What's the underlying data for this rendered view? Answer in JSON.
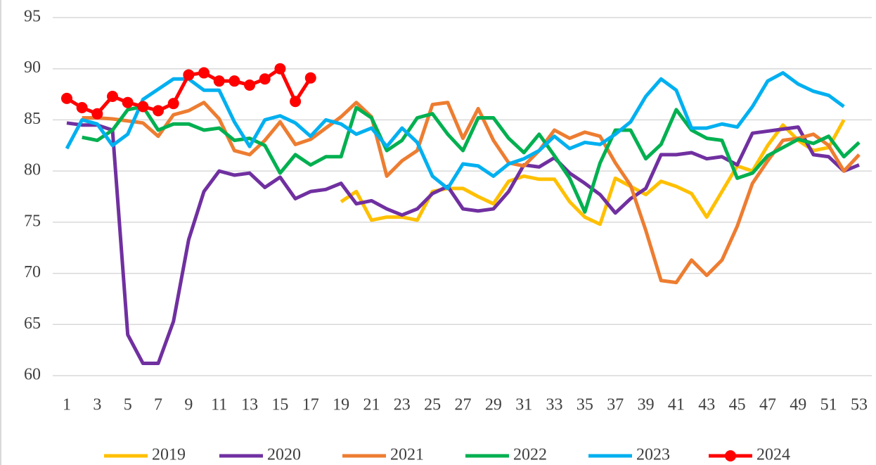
{
  "chart_data": {
    "type": "line",
    "x": [
      1,
      2,
      3,
      4,
      5,
      6,
      7,
      8,
      9,
      10,
      11,
      12,
      13,
      14,
      15,
      16,
      17,
      18,
      19,
      20,
      21,
      22,
      23,
      24,
      25,
      26,
      27,
      28,
      29,
      30,
      31,
      32,
      33,
      34,
      35,
      36,
      37,
      38,
      39,
      40,
      41,
      42,
      43,
      44,
      45,
      46,
      47,
      48,
      49,
      50,
      51,
      52,
      53
    ],
    "xlim": [
      1,
      53
    ],
    "xticks": [
      1,
      3,
      5,
      7,
      9,
      11,
      13,
      15,
      17,
      19,
      21,
      23,
      25,
      27,
      29,
      31,
      33,
      35,
      37,
      39,
      41,
      43,
      45,
      47,
      49,
      51,
      53
    ],
    "ylim": [
      60,
      95
    ],
    "yticks": [
      60,
      65,
      70,
      75,
      80,
      85,
      90,
      95
    ],
    "grid": true,
    "legend": "bottom",
    "series": [
      {
        "name": "2019",
        "color": "#ffc000",
        "values": [
          null,
          null,
          null,
          null,
          null,
          null,
          null,
          null,
          null,
          null,
          null,
          null,
          null,
          null,
          null,
          null,
          null,
          null,
          77.0,
          78.0,
          75.2,
          75.5,
          75.5,
          75.2,
          78.0,
          78.3,
          78.3,
          77.5,
          76.8,
          79.0,
          79.5,
          79.2,
          79.2,
          77.0,
          75.5,
          74.8,
          79.3,
          78.5,
          77.7,
          79.0,
          78.5,
          77.8,
          75.5,
          78.0,
          80.5,
          80.0,
          82.5,
          84.5,
          83.0,
          82.0,
          82.3,
          85.0,
          null
        ]
      },
      {
        "name": "2020",
        "color": "#7030a0",
        "values": [
          84.7,
          84.5,
          84.5,
          84.0,
          64.0,
          61.2,
          61.2,
          65.3,
          73.3,
          78.0,
          80.0,
          79.6,
          79.8,
          78.4,
          79.4,
          77.3,
          78.0,
          78.2,
          78.8,
          76.8,
          77.1,
          76.3,
          75.7,
          76.3,
          77.8,
          78.5,
          76.3,
          76.1,
          76.3,
          78.0,
          80.6,
          80.4,
          81.3,
          79.8,
          78.8,
          77.7,
          75.9,
          77.3,
          78.3,
          81.6,
          81.6,
          81.8,
          81.2,
          81.4,
          80.6,
          83.7,
          83.9,
          84.1,
          84.3,
          81.6,
          81.4,
          80.0,
          80.6
        ]
      },
      {
        "name": "2021",
        "color": "#ed7d31",
        "values": [
          null,
          85.2,
          85.2,
          85.1,
          84.9,
          84.7,
          83.4,
          85.5,
          85.9,
          86.7,
          85.1,
          82.0,
          81.6,
          83.0,
          84.8,
          82.6,
          83.1,
          84.2,
          85.3,
          86.7,
          85.3,
          79.5,
          81.0,
          82.0,
          86.5,
          86.7,
          83.2,
          86.1,
          83.0,
          80.8,
          80.5,
          82.0,
          84.0,
          83.2,
          83.8,
          83.4,
          80.8,
          78.6,
          74.2,
          69.3,
          69.1,
          71.3,
          69.8,
          71.3,
          74.6,
          78.8,
          81.0,
          83.0,
          83.2,
          83.6,
          82.5,
          80.0,
          81.6
        ]
      },
      {
        "name": "2022",
        "color": "#00b050",
        "values": [
          null,
          83.3,
          83.0,
          84.0,
          86.0,
          86.3,
          84.0,
          84.6,
          84.6,
          84.0,
          84.2,
          83.0,
          83.2,
          82.5,
          79.8,
          81.6,
          80.6,
          81.4,
          81.4,
          86.2,
          85.2,
          82.0,
          83.0,
          85.2,
          85.6,
          83.6,
          82.0,
          85.2,
          85.2,
          83.2,
          81.8,
          83.6,
          81.5,
          79.3,
          76.0,
          80.8,
          84.0,
          84.0,
          81.2,
          82.6,
          86.0,
          84.0,
          83.2,
          83.0,
          79.3,
          79.8,
          81.5,
          82.3,
          83.1,
          82.7,
          83.4,
          81.4,
          82.8
        ]
      },
      {
        "name": "2023",
        "color": "#00b0f0",
        "values": [
          82.2,
          85.0,
          84.6,
          82.5,
          83.6,
          87.0,
          88.0,
          89.0,
          89.0,
          87.9,
          87.9,
          84.8,
          82.4,
          85.0,
          85.4,
          84.7,
          83.4,
          85.0,
          84.6,
          83.6,
          84.2,
          82.4,
          84.2,
          82.8,
          79.5,
          78.3,
          80.7,
          80.5,
          79.5,
          80.7,
          81.2,
          82.0,
          83.4,
          82.2,
          82.8,
          82.6,
          83.6,
          84.8,
          87.3,
          89.0,
          87.9,
          84.2,
          84.2,
          84.6,
          84.3,
          86.3,
          88.8,
          89.6,
          88.5,
          87.8,
          87.4,
          86.3,
          null
        ]
      },
      {
        "name": "2024",
        "color": "#ff0000",
        "marker": "circle",
        "values": [
          87.1,
          86.2,
          85.6,
          87.3,
          86.7,
          86.3,
          85.9,
          86.6,
          89.4,
          89.6,
          88.8,
          88.8,
          88.4,
          89.0,
          90.0,
          86.8,
          89.1,
          null,
          null,
          null,
          null,
          null,
          null,
          null,
          null,
          null,
          null,
          null,
          null,
          null,
          null,
          null,
          null,
          null,
          null,
          null,
          null,
          null,
          null,
          null,
          null,
          null,
          null,
          null,
          null,
          null,
          null,
          null,
          null,
          null,
          null,
          null,
          null
        ]
      }
    ]
  }
}
